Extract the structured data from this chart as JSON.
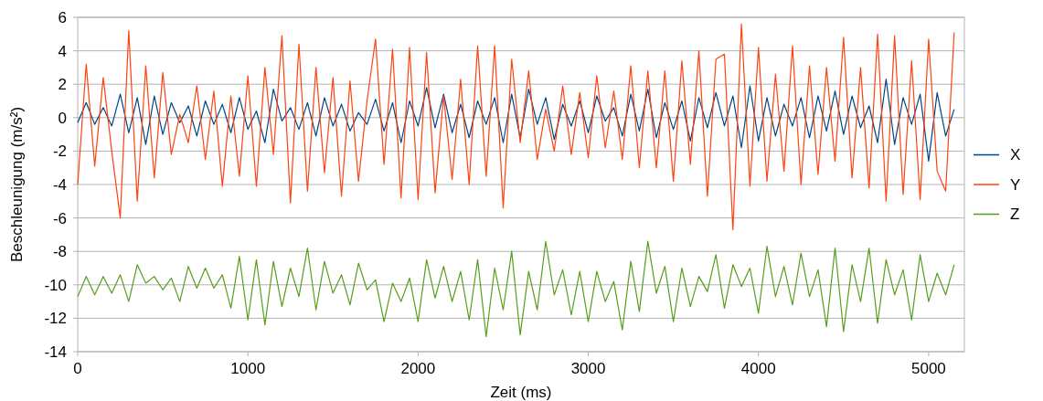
{
  "chart_data": {
    "type": "line",
    "xlabel": "Zeit (ms)",
    "ylabel": "Beschleunigung (m/s²)",
    "xlim": [
      0,
      5210
    ],
    "xticks": [
      0,
      1000,
      2000,
      3000,
      4000,
      5000
    ],
    "ylim": [
      -14,
      6
    ],
    "yticks": [
      -14,
      -12,
      -10,
      -8,
      -6,
      -4,
      -2,
      0,
      2,
      4,
      6
    ],
    "grid": "y",
    "legend": "right",
    "marker": "none",
    "line_style": "solid",
    "x": [
      0,
      50,
      100,
      150,
      200,
      250,
      300,
      350,
      400,
      450,
      500,
      550,
      600,
      650,
      700,
      750,
      800,
      850,
      900,
      950,
      1000,
      1050,
      1100,
      1150,
      1200,
      1250,
      1300,
      1350,
      1400,
      1450,
      1500,
      1550,
      1600,
      1650,
      1700,
      1750,
      1800,
      1850,
      1900,
      1950,
      2000,
      2050,
      2100,
      2150,
      2200,
      2250,
      2300,
      2350,
      2400,
      2450,
      2500,
      2550,
      2600,
      2650,
      2700,
      2750,
      2800,
      2850,
      2900,
      2950,
      3000,
      3050,
      3100,
      3150,
      3200,
      3250,
      3300,
      3350,
      3400,
      3450,
      3500,
      3550,
      3600,
      3650,
      3700,
      3750,
      3800,
      3850,
      3900,
      3950,
      4000,
      4050,
      4100,
      4150,
      4200,
      4250,
      4300,
      4350,
      4400,
      4450,
      4500,
      4550,
      4600,
      4650,
      4700,
      4750,
      4800,
      4850,
      4900,
      4950,
      5000,
      5050,
      5100,
      5150
    ],
    "series": [
      {
        "name": "X",
        "color": "#004586",
        "values": [
          -0.3,
          0.9,
          -0.4,
          0.6,
          -0.5,
          1.4,
          -0.9,
          1.2,
          -1.6,
          1.3,
          -1.0,
          0.9,
          -0.3,
          0.7,
          -1.1,
          1.0,
          -0.4,
          0.8,
          -0.9,
          1.2,
          -0.7,
          0.4,
          -1.5,
          1.7,
          -0.2,
          0.6,
          -0.7,
          0.9,
          -1.1,
          1.2,
          -0.5,
          0.8,
          -0.8,
          0.3,
          -0.4,
          1.1,
          -0.8,
          0.9,
          -1.5,
          1.0,
          -0.5,
          1.8,
          -0.6,
          1.4,
          -0.9,
          0.8,
          -1.2,
          1.0,
          -0.4,
          1.2,
          -1.5,
          1.4,
          -1.2,
          1.7,
          -0.4,
          1.2,
          -1.3,
          0.8,
          -0.5,
          1.0,
          -0.9,
          1.3,
          -0.2,
          0.6,
          -1.1,
          1.4,
          -0.8,
          1.7,
          -1.2,
          0.9,
          -0.7,
          1.0,
          -1.4,
          1.2,
          -0.6,
          1.5,
          -0.5,
          1.3,
          -1.8,
          1.9,
          -1.4,
          1.2,
          -1.1,
          0.8,
          -0.5,
          1.2,
          -1.2,
          1.3,
          -0.8,
          1.6,
          -1.0,
          1.3,
          -0.6,
          0.7,
          -1.5,
          2.3,
          -1.6,
          1.2,
          -0.4,
          1.4,
          -2.6,
          1.5,
          -1.1,
          0.5
        ]
      },
      {
        "name": "Y",
        "color": "#ff420e",
        "values": [
          -4.0,
          3.2,
          -2.9,
          2.4,
          -2.0,
          -6.0,
          5.2,
          -5.0,
          3.1,
          -3.6,
          2.7,
          -2.2,
          0.2,
          -1.5,
          1.9,
          -2.5,
          1.6,
          -4.1,
          1.3,
          -3.5,
          2.5,
          -4.1,
          3.0,
          -2.2,
          4.9,
          -5.1,
          4.4,
          -4.4,
          3.0,
          -3.3,
          2.4,
          -4.7,
          2.2,
          -3.8,
          1.0,
          4.7,
          -2.8,
          4.1,
          -4.8,
          4.2,
          -4.9,
          3.9,
          -4.5,
          1.3,
          -3.7,
          2.3,
          -4.0,
          4.3,
          -3.5,
          4.3,
          -5.4,
          3.5,
          -1.5,
          2.8,
          -2.5,
          0.5,
          -2.0,
          1.9,
          -2.2,
          1.5,
          -2.4,
          2.5,
          -1.8,
          1.6,
          -2.5,
          3.1,
          -3.0,
          2.8,
          -3.0,
          2.8,
          -3.8,
          3.4,
          -2.8,
          4.0,
          -4.7,
          3.5,
          3.8,
          -6.7,
          5.6,
          -4.1,
          4.2,
          -3.8,
          2.6,
          -3.2,
          4.3,
          -4.0,
          3.1,
          -3.4,
          3.0,
          -2.6,
          4.8,
          -3.6,
          3.0,
          -4.2,
          5.0,
          -5.0,
          4.9,
          -4.6,
          3.4,
          -4.9,
          4.7,
          -3.2,
          -4.4,
          5.1
        ]
      },
      {
        "name": "Z",
        "color": "#579d1c",
        "values": [
          -10.7,
          -9.5,
          -10.6,
          -9.5,
          -10.5,
          -9.4,
          -11.0,
          -8.8,
          -9.9,
          -9.5,
          -10.3,
          -9.6,
          -11.0,
          -8.9,
          -10.2,
          -9.0,
          -10.2,
          -9.4,
          -11.4,
          -8.3,
          -12.1,
          -8.5,
          -12.4,
          -8.6,
          -11.3,
          -9.0,
          -10.7,
          -7.8,
          -11.5,
          -8.6,
          -10.5,
          -9.4,
          -11.2,
          -8.7,
          -10.3,
          -9.7,
          -12.2,
          -9.9,
          -11.0,
          -9.6,
          -12.2,
          -8.5,
          -10.8,
          -8.9,
          -11.0,
          -9.2,
          -12.1,
          -8.5,
          -13.1,
          -9.0,
          -11.5,
          -8.0,
          -13.0,
          -9.2,
          -11.5,
          -7.4,
          -10.6,
          -9.1,
          -11.8,
          -9.2,
          -12.2,
          -9.2,
          -11.0,
          -9.8,
          -12.7,
          -8.6,
          -11.6,
          -7.4,
          -10.5,
          -8.9,
          -12.2,
          -9.0,
          -11.3,
          -9.5,
          -10.4,
          -8.2,
          -11.4,
          -8.8,
          -10.1,
          -9.0,
          -11.7,
          -7.7,
          -10.7,
          -8.9,
          -11.2,
          -8.1,
          -10.7,
          -9.1,
          -12.5,
          -7.8,
          -12.8,
          -8.8,
          -11.0,
          -7.8,
          -12.3,
          -8.5,
          -10.6,
          -9.1,
          -12.1,
          -8.2,
          -11.0,
          -9.3,
          -10.6,
          -8.8
        ]
      }
    ]
  }
}
